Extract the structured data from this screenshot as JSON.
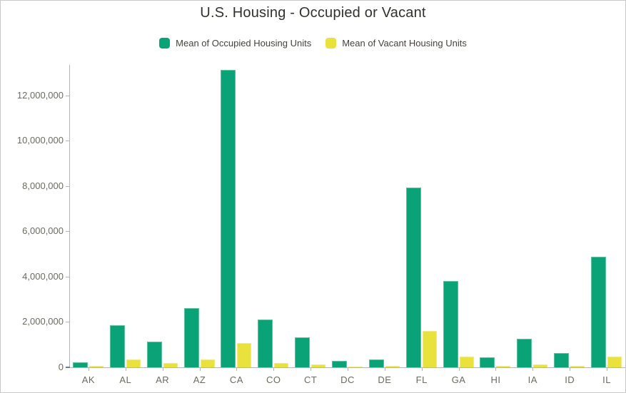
{
  "title": "U.S. Housing - Occupied or Vacant",
  "legend": {
    "items": [
      {
        "label": "Mean of Occupied Housing Units",
        "color": "#0aa377"
      },
      {
        "label": "Mean of Vacant Housing Units",
        "color": "#eae23c"
      }
    ]
  },
  "axes": {
    "y_tick_values": [
      0,
      2000000,
      4000000,
      6000000,
      8000000,
      10000000,
      12000000
    ],
    "y_tick_labels": [
      "0",
      "2,000,000",
      "4,000,000",
      "6,000,000",
      "8,000,000",
      "10,000,000",
      "12,000,000"
    ]
  },
  "chart_data": {
    "type": "bar",
    "title": "U.S. Housing - Occupied or Vacant",
    "categories": [
      "AK",
      "AL",
      "AR",
      "AZ",
      "CA",
      "CO",
      "CT",
      "DC",
      "DE",
      "FL",
      "GA",
      "HI",
      "IA",
      "ID",
      "IL"
    ],
    "series": [
      {
        "name": "Mean of Occupied Housing Units",
        "color": "#0aa377",
        "values": [
          210000,
          1870000,
          1120000,
          2620000,
          13140000,
          2120000,
          1330000,
          270000,
          350000,
          7940000,
          3800000,
          430000,
          1260000,
          620000,
          4870000
        ]
      },
      {
        "name": "Mean of Vacant Housing Units",
        "color": "#eae23c",
        "values": [
          55000,
          350000,
          180000,
          360000,
          1070000,
          190000,
          130000,
          35000,
          60000,
          1600000,
          470000,
          65000,
          115000,
          65000,
          460000
        ]
      }
    ],
    "xlabel": "",
    "ylabel": "",
    "ylim": [
      0,
      13350000
    ],
    "yticks": [
      0,
      2000000,
      4000000,
      6000000,
      8000000,
      10000000,
      12000000
    ],
    "grid": false,
    "legend_position": "top"
  },
  "colors": {
    "occupied": "#0aa377",
    "vacant": "#eae23c",
    "axis_line": "#b5b5b5",
    "zero_tick": "#5b7fb9",
    "tick_label": "#6b6b62",
    "title_text": "#32312c",
    "page_border": "#c9c9c9"
  }
}
